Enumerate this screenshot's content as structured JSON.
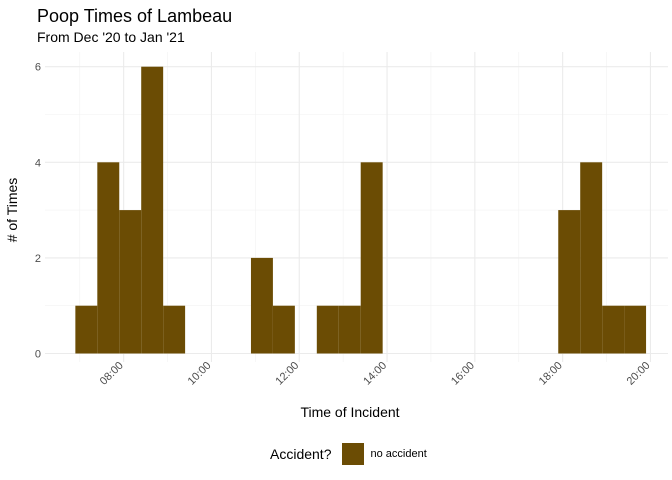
{
  "chart_data": {
    "type": "bar",
    "title": "Poop Times of Lambeau",
    "subtitle": "From Dec '20 to Jan '21",
    "xlabel": "Time of Incident",
    "ylabel": "# of Times",
    "x_tick_labels": [
      "08:00",
      "10:00",
      "12:00",
      "14:00",
      "16:00",
      "18:00",
      "20:00"
    ],
    "x_ticks_hours": [
      8,
      10,
      12,
      14,
      16,
      18,
      20
    ],
    "xlim_hours": [
      6.5,
      20.3
    ],
    "y_ticks": [
      0,
      2,
      4,
      6
    ],
    "ylim": [
      0,
      6.4
    ],
    "grid": true,
    "legend_title": "Accident?",
    "legend_position": "bottom",
    "bar_color": "#6b4c04",
    "bins": [
      {
        "start_hour": 6.9,
        "end_hour": 7.4,
        "count": 1
      },
      {
        "start_hour": 7.4,
        "end_hour": 7.9,
        "count": 4
      },
      {
        "start_hour": 7.9,
        "end_hour": 8.4,
        "count": 3
      },
      {
        "start_hour": 8.4,
        "end_hour": 8.9,
        "count": 6
      },
      {
        "start_hour": 8.9,
        "end_hour": 9.4,
        "count": 1
      },
      {
        "start_hour": 10.9,
        "end_hour": 11.4,
        "count": 2
      },
      {
        "start_hour": 11.4,
        "end_hour": 11.9,
        "count": 1
      },
      {
        "start_hour": 12.4,
        "end_hour": 12.9,
        "count": 1
      },
      {
        "start_hour": 12.9,
        "end_hour": 13.4,
        "count": 1
      },
      {
        "start_hour": 13.4,
        "end_hour": 13.9,
        "count": 4
      },
      {
        "start_hour": 17.9,
        "end_hour": 18.4,
        "count": 3
      },
      {
        "start_hour": 18.4,
        "end_hour": 18.9,
        "count": 4
      },
      {
        "start_hour": 18.9,
        "end_hour": 19.4,
        "count": 1
      },
      {
        "start_hour": 19.4,
        "end_hour": 19.9,
        "count": 1
      }
    ],
    "series": [
      {
        "name": "no accident"
      }
    ]
  }
}
